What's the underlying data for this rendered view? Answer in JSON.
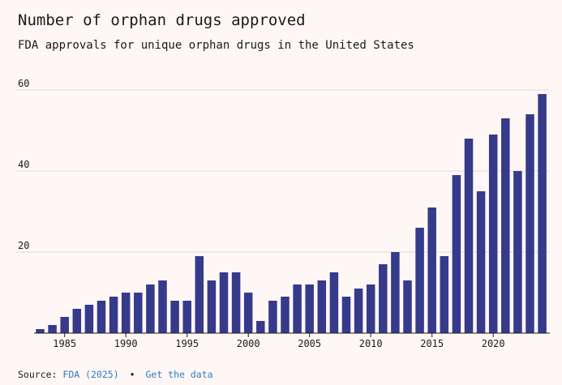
{
  "header": {
    "title": "Number of orphan drugs approved",
    "subtitle": "FDA approvals for unique orphan drugs in the United States"
  },
  "footer": {
    "source_label": "Source:",
    "source_link": "FDA (2025)",
    "separator": "•",
    "data_link": "Get the data"
  },
  "colors": {
    "bar": "#363a8b",
    "grid": "#e2d9d6",
    "axis": "#1a1a1a",
    "link": "#2f7ec1",
    "background": "#fff7f5"
  },
  "chart_data": {
    "type": "bar",
    "title": "Number of orphan drugs approved",
    "subtitle": "FDA approvals for unique orphan drugs in the United States",
    "xlabel": "",
    "ylabel": "",
    "ylim": [
      0,
      60
    ],
    "yticks": [
      20,
      40,
      60
    ],
    "xticks": [
      1985,
      1990,
      1995,
      2000,
      2005,
      2010,
      2015,
      2020
    ],
    "grid": true,
    "categories": [
      1983,
      1984,
      1985,
      1986,
      1987,
      1988,
      1989,
      1990,
      1991,
      1992,
      1993,
      1994,
      1995,
      1996,
      1997,
      1998,
      1999,
      2000,
      2001,
      2002,
      2003,
      2004,
      2005,
      2006,
      2007,
      2008,
      2009,
      2010,
      2011,
      2012,
      2013,
      2014,
      2015,
      2016,
      2017,
      2018,
      2019,
      2020,
      2021,
      2022,
      2023,
      2024
    ],
    "values": [
      1,
      2,
      4,
      6,
      7,
      8,
      9,
      10,
      10,
      12,
      13,
      8,
      8,
      19,
      13,
      15,
      15,
      10,
      3,
      8,
      9,
      12,
      12,
      13,
      15,
      9,
      11,
      12,
      17,
      20,
      13,
      26,
      31,
      19,
      39,
      48,
      35,
      49,
      53,
      40,
      54,
      59
    ]
  }
}
